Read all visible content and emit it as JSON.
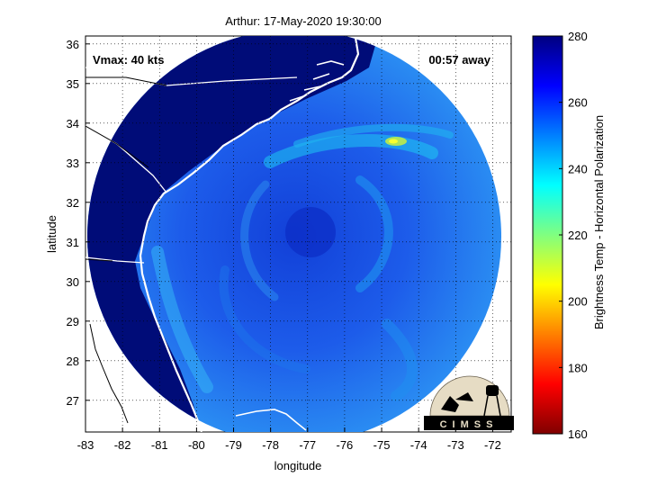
{
  "chart_data": {
    "type": "heatmap",
    "title": "Arthur: 17-May-2020 19:30:00",
    "xlabel": "longitude",
    "ylabel": "latitude",
    "xlim": [
      -83,
      -71.5
    ],
    "ylim": [
      26.2,
      36.2
    ],
    "x_ticks": [
      -83,
      -82,
      -81,
      -80,
      -79,
      -78,
      -77,
      -76,
      -75,
      -74,
      -73,
      -72
    ],
    "y_ticks": [
      27,
      28,
      29,
      30,
      31,
      32,
      33,
      34,
      35,
      36
    ],
    "grid": true,
    "grid_style": "dotted",
    "annotations": {
      "vmax": "Vmax: 40 kts",
      "time_away": "00:57 away"
    },
    "storm_center": {
      "lon": -77.2,
      "lat": 31.2
    },
    "coverage_radius_deg_lat": 5.0,
    "colorbar": {
      "label": "Brightness Temp - Horizontal Polarization",
      "min": 160,
      "max": 280,
      "ticks": [
        160,
        180,
        200,
        220,
        240,
        260,
        280
      ],
      "colormap": "jet"
    }
  },
  "logo": {
    "text": "CIMSS"
  },
  "colors": {
    "land": "#000c78",
    "ocean_base": "#1f5ee8",
    "coast": "#ffffff"
  }
}
